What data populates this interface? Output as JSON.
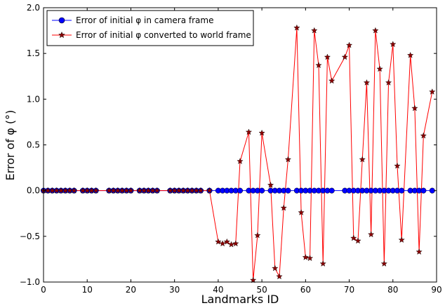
{
  "chart_data": {
    "type": "line",
    "xlabel": "Landmarks ID",
    "ylabel": "Error of φ (°)",
    "xlim": [
      0,
      90
    ],
    "ylim": [
      -1.0,
      2.0
    ],
    "xticks": [
      0,
      10,
      20,
      30,
      40,
      50,
      60,
      70,
      80,
      90
    ],
    "yticks": [
      -1.0,
      -0.5,
      0.0,
      0.5,
      1.0,
      1.5,
      2.0
    ],
    "xtick_labels": [
      "0",
      "10",
      "20",
      "30",
      "40",
      "50",
      "60",
      "70",
      "80",
      "90"
    ],
    "ytick_labels": [
      "−1.0",
      "−0.5",
      "0.0",
      "0.5",
      "1.0",
      "1.5",
      "2.0"
    ],
    "grid": false,
    "legend_position": "top-left",
    "series": [
      {
        "name": "Error of initial φ in camera frame",
        "color": "#0000ff",
        "marker": "circle",
        "x": [
          0,
          1,
          2,
          3,
          4,
          5,
          6,
          7,
          9,
          10,
          11,
          12,
          15,
          16,
          17,
          18,
          19,
          20,
          22,
          23,
          24,
          25,
          26,
          29,
          30,
          31,
          32,
          33,
          34,
          35,
          36,
          38,
          40,
          41,
          42,
          43,
          44,
          45,
          47,
          48,
          49,
          50,
          52,
          53,
          54,
          55,
          56,
          58,
          59,
          60,
          61,
          62,
          63,
          64,
          65,
          66,
          69,
          70,
          71,
          72,
          73,
          74,
          75,
          76,
          77,
          78,
          79,
          80,
          81,
          82,
          84,
          85,
          86,
          87,
          89
        ],
        "y": [
          0,
          0,
          0,
          0,
          0,
          0,
          0,
          0,
          0,
          0,
          0,
          0,
          0,
          0,
          0,
          0,
          0,
          0,
          0,
          0,
          0,
          0,
          0,
          0,
          0,
          0,
          0,
          0,
          0,
          0,
          0,
          0,
          0,
          0,
          0,
          0,
          0,
          0,
          0,
          0,
          0,
          0,
          0,
          0,
          0,
          0,
          0,
          0,
          0,
          0,
          0,
          0,
          0,
          0,
          0,
          0,
          0,
          0,
          0,
          0,
          0,
          0,
          0,
          0,
          0,
          0,
          0,
          0,
          0,
          0,
          0,
          0,
          0,
          0,
          0
        ]
      },
      {
        "name": "Error of initial φ converted to world frame",
        "color": "#ff0000",
        "marker": "star",
        "x": [
          0,
          1,
          2,
          3,
          4,
          5,
          6,
          7,
          9,
          10,
          11,
          12,
          15,
          16,
          17,
          18,
          19,
          20,
          22,
          23,
          24,
          25,
          26,
          29,
          30,
          31,
          32,
          33,
          34,
          35,
          36,
          38,
          40,
          41,
          42,
          43,
          44,
          45,
          47,
          48,
          49,
          50,
          52,
          53,
          54,
          55,
          56,
          58,
          59,
          60,
          61,
          62,
          63,
          64,
          65,
          66,
          69,
          70,
          71,
          72,
          73,
          74,
          75,
          76,
          77,
          78,
          79,
          80,
          81,
          82,
          84,
          85,
          86,
          87,
          89
        ],
        "y": [
          0,
          0,
          0,
          0,
          0,
          0,
          0,
          0,
          0,
          0,
          0,
          0,
          0,
          0,
          0,
          0,
          0,
          0,
          0,
          0,
          0,
          0,
          0,
          0,
          0,
          0,
          0,
          0,
          0,
          0,
          0,
          0,
          -0.56,
          -0.58,
          -0.56,
          -0.59,
          -0.58,
          0.32,
          0.64,
          -0.98,
          -0.49,
          0.63,
          0.06,
          -0.85,
          -0.94,
          -0.19,
          0.34,
          1.78,
          -0.24,
          -0.73,
          -0.74,
          1.75,
          1.37,
          -0.8,
          1.46,
          1.2,
          1.46,
          1.59,
          -0.52,
          -0.55,
          0.34,
          1.18,
          -0.48,
          1.75,
          1.33,
          -0.8,
          1.18,
          1.6,
          0.27,
          -0.54,
          1.48,
          0.9,
          -0.67,
          0.6,
          1.08
        ]
      }
    ]
  }
}
